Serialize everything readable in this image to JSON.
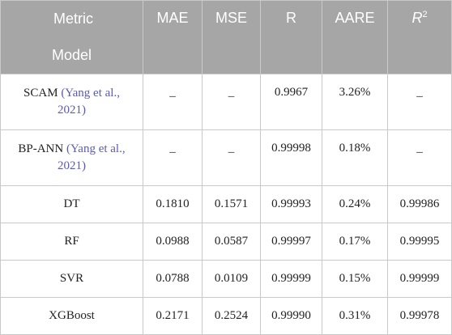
{
  "table": {
    "header": {
      "corner_top": "Metric",
      "corner_bottom": "Model",
      "columns": [
        "MAE",
        "MSE",
        "R",
        "AARE"
      ],
      "r2_base": "R",
      "r2_sup": "2"
    },
    "rows": [
      {
        "model": "SCAM",
        "citation_a": "(Yang et al.,",
        "citation_b": "2021)",
        "close": ")",
        "mae": "_",
        "mse": "_",
        "r": "0.9967",
        "aare": "3.26%",
        "r2": "_"
      },
      {
        "model": "BP-ANN",
        "citation_a": "(Yang et al.,",
        "citation_b": "2021)",
        "close": ")",
        "mae": "_",
        "mse": "_",
        "r": "0.99998",
        "aare": "0.18%",
        "r2": "_"
      },
      {
        "model": "DT",
        "mae": "0.1810",
        "mse": "0.1571",
        "r": "0.99993",
        "aare": "0.24%",
        "r2": "0.99986"
      },
      {
        "model": "RF",
        "mae": "0.0988",
        "mse": "0.0587",
        "r": "0.99997",
        "aare": "0.17%",
        "r2": "0.99995"
      },
      {
        "model": "SVR",
        "mae": "0.0788",
        "mse": "0.0109",
        "r": "0.99999",
        "aare": "0.15%",
        "r2": "0.99999"
      },
      {
        "model": "XGBoost",
        "mae": "0.2171",
        "mse": "0.2524",
        "r": "0.99990",
        "aare": "0.31%",
        "r2": "0.99978"
      }
    ]
  }
}
